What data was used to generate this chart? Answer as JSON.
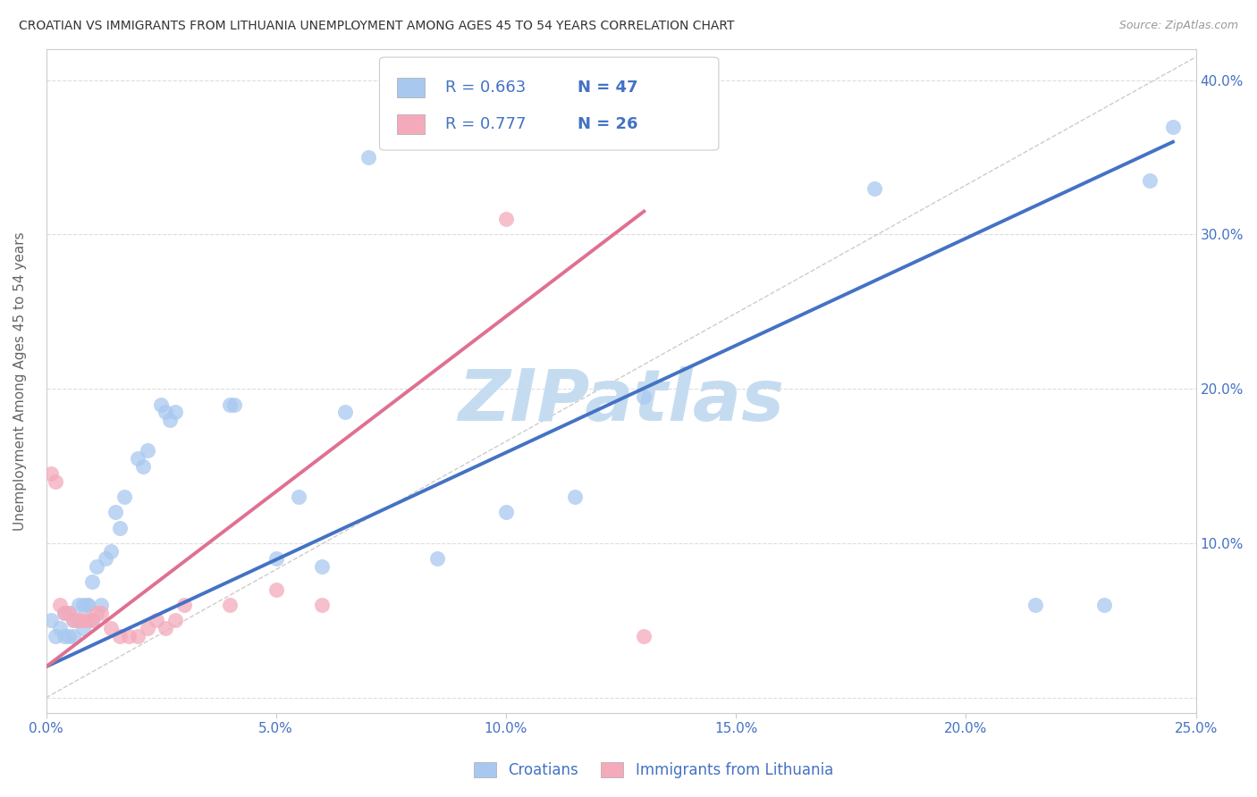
{
  "title": "CROATIAN VS IMMIGRANTS FROM LITHUANIA UNEMPLOYMENT AMONG AGES 45 TO 54 YEARS CORRELATION CHART",
  "source": "Source: ZipAtlas.com",
  "ylabel": "Unemployment Among Ages 45 to 54 years",
  "xlim": [
    0.0,
    0.25
  ],
  "ylim": [
    -0.01,
    0.42
  ],
  "xticks": [
    0.0,
    0.05,
    0.1,
    0.15,
    0.2,
    0.25
  ],
  "yticks": [
    0.0,
    0.1,
    0.2,
    0.3,
    0.4
  ],
  "xticklabels": [
    "0.0%",
    "5.0%",
    "10.0%",
    "15.0%",
    "20.0%",
    "25.0%"
  ],
  "yticklabels": [
    "",
    "10.0%",
    "20.0%",
    "30.0%",
    "40.0%"
  ],
  "legend_r1": "R = 0.663",
  "legend_n1": "N = 47",
  "legend_r2": "R = 0.777",
  "legend_n2": "N = 26",
  "legend_label1": "Croatians",
  "legend_label2": "Immigrants from Lithuania",
  "color_blue": "#A8C8F0",
  "color_pink": "#F4AABB",
  "color_blue_line": "#4472C4",
  "color_pink_line": "#E07090",
  "color_text": "#4472C4",
  "watermark": "ZIPatlas",
  "watermark_color": "#C5DCF0",
  "blue_scatter_x": [
    0.001,
    0.002,
    0.003,
    0.004,
    0.004,
    0.005,
    0.005,
    0.006,
    0.006,
    0.007,
    0.007,
    0.008,
    0.008,
    0.009,
    0.009,
    0.01,
    0.01,
    0.011,
    0.012,
    0.013,
    0.014,
    0.015,
    0.016,
    0.017,
    0.02,
    0.021,
    0.022,
    0.025,
    0.026,
    0.027,
    0.028,
    0.04,
    0.041,
    0.05,
    0.055,
    0.06,
    0.065,
    0.07,
    0.085,
    0.1,
    0.115,
    0.13,
    0.18,
    0.215,
    0.23,
    0.24,
    0.245
  ],
  "blue_scatter_y": [
    0.05,
    0.04,
    0.045,
    0.04,
    0.055,
    0.04,
    0.055,
    0.04,
    0.05,
    0.05,
    0.06,
    0.045,
    0.06,
    0.06,
    0.06,
    0.05,
    0.075,
    0.085,
    0.06,
    0.09,
    0.095,
    0.12,
    0.11,
    0.13,
    0.155,
    0.15,
    0.16,
    0.19,
    0.185,
    0.18,
    0.185,
    0.19,
    0.19,
    0.09,
    0.13,
    0.085,
    0.185,
    0.35,
    0.09,
    0.12,
    0.13,
    0.195,
    0.33,
    0.06,
    0.06,
    0.335,
    0.37
  ],
  "pink_scatter_x": [
    0.001,
    0.002,
    0.003,
    0.004,
    0.005,
    0.006,
    0.007,
    0.008,
    0.009,
    0.01,
    0.011,
    0.012,
    0.014,
    0.016,
    0.018,
    0.02,
    0.022,
    0.024,
    0.026,
    0.028,
    0.03,
    0.04,
    0.05,
    0.06,
    0.1,
    0.13
  ],
  "pink_scatter_y": [
    0.145,
    0.14,
    0.06,
    0.055,
    0.055,
    0.05,
    0.05,
    0.05,
    0.05,
    0.05,
    0.055,
    0.055,
    0.045,
    0.04,
    0.04,
    0.04,
    0.045,
    0.05,
    0.045,
    0.05,
    0.06,
    0.06,
    0.07,
    0.06,
    0.31,
    0.04
  ],
  "blue_line_x": [
    0.0,
    0.245
  ],
  "blue_line_y": [
    0.02,
    0.36
  ],
  "pink_line_x": [
    0.0,
    0.13
  ],
  "pink_line_y": [
    0.02,
    0.315
  ],
  "diag_line_x": [
    0.0,
    0.25
  ],
  "diag_line_y": [
    0.0,
    0.415
  ]
}
